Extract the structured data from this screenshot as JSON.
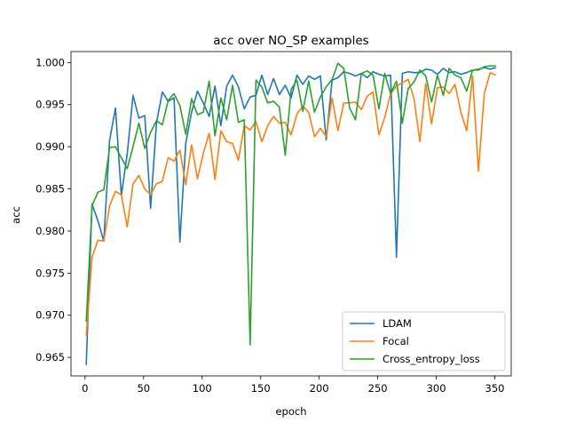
{
  "chart_data": {
    "type": "line",
    "title": "acc over NO_SP examples",
    "xlabel": "epoch",
    "ylabel": "acc",
    "xlim": [
      -12,
      364
    ],
    "ylim": [
      0.9628,
      1.0013
    ],
    "xticks": [
      0,
      50,
      100,
      150,
      200,
      250,
      300,
      350
    ],
    "yticks": [
      0.965,
      0.97,
      0.975,
      0.98,
      0.985,
      0.99,
      0.995,
      1.0
    ],
    "ytick_labels": [
      "0.965",
      "0.970",
      "0.975",
      "0.980",
      "0.985",
      "0.990",
      "0.995",
      "1.000"
    ],
    "grid": false,
    "legend_position": "lower-right",
    "x": [
      1,
      6,
      11,
      16,
      21,
      26,
      31,
      36,
      41,
      46,
      51,
      56,
      61,
      66,
      71,
      76,
      81,
      86,
      91,
      96,
      101,
      106,
      111,
      116,
      121,
      126,
      131,
      136,
      141,
      146,
      151,
      156,
      161,
      166,
      171,
      176,
      181,
      186,
      191,
      196,
      201,
      206,
      211,
      216,
      221,
      226,
      231,
      236,
      241,
      246,
      251,
      256,
      261,
      266,
      271,
      276,
      281,
      286,
      291,
      296,
      301,
      306,
      311,
      316,
      321,
      326,
      331,
      336,
      341,
      346,
      351
    ],
    "series": [
      {
        "name": "LDAM",
        "color": "#1f77b4",
        "values": [
          0.9641,
          0.9832,
          0.9812,
          0.9788,
          0.9908,
          0.9946,
          0.9842,
          0.9891,
          0.9961,
          0.9934,
          0.9937,
          0.9827,
          0.9928,
          0.9965,
          0.9954,
          0.9958,
          0.9787,
          0.9904,
          0.9941,
          0.9966,
          0.9952,
          0.9936,
          0.9972,
          0.9925,
          0.9972,
          0.9985,
          0.9971,
          0.9945,
          0.9959,
          0.9961,
          0.9985,
          0.9962,
          0.9981,
          0.9962,
          0.9973,
          0.9958,
          0.9985,
          0.9974,
          0.9984,
          0.998,
          0.9984,
          0.9908,
          0.9979,
          0.9982,
          0.9989,
          0.9987,
          0.9984,
          0.9987,
          0.9982,
          0.9989,
          0.9986,
          0.9984,
          0.9985,
          0.9769,
          0.9987,
          0.9989,
          0.9988,
          0.9988,
          0.9992,
          0.9991,
          0.9986,
          0.9993,
          0.9988,
          0.9989,
          0.9986,
          0.9988,
          0.9991,
          0.9992,
          0.9994,
          0.9992,
          0.9994
        ]
      },
      {
        "name": "Focal",
        "color": "#ff7f0e",
        "values": [
          0.9675,
          0.9769,
          0.9789,
          0.9788,
          0.983,
          0.9847,
          0.9843,
          0.9805,
          0.9856,
          0.9866,
          0.985,
          0.9843,
          0.9856,
          0.9859,
          0.9887,
          0.9883,
          0.9896,
          0.9855,
          0.9902,
          0.9862,
          0.9892,
          0.9916,
          0.9861,
          0.9919,
          0.9906,
          0.9904,
          0.9884,
          0.9925,
          0.992,
          0.993,
          0.9906,
          0.9925,
          0.9936,
          0.9928,
          0.9929,
          0.9914,
          0.9939,
          0.9948,
          0.9941,
          0.9912,
          0.9922,
          0.9912,
          0.9958,
          0.9919,
          0.9952,
          0.9952,
          0.9953,
          0.9944,
          0.996,
          0.9965,
          0.9914,
          0.9935,
          0.9963,
          0.9972,
          0.9976,
          0.998,
          0.9957,
          0.9906,
          0.9975,
          0.9927,
          0.997,
          0.9971,
          0.9963,
          0.9974,
          0.9941,
          0.9919,
          0.9984,
          0.9871,
          0.9963,
          0.9988,
          0.9985
        ]
      },
      {
        "name": "Cross_entropy_loss",
        "color": "#2ca02c",
        "values": [
          0.9692,
          0.983,
          0.9846,
          0.9849,
          0.9899,
          0.99,
          0.9887,
          0.9874,
          0.99,
          0.9928,
          0.9898,
          0.9917,
          0.9931,
          0.9926,
          0.9955,
          0.9963,
          0.9949,
          0.9915,
          0.9957,
          0.9938,
          0.9941,
          0.9978,
          0.9913,
          0.9958,
          0.9932,
          0.9973,
          0.9929,
          0.9932,
          0.9665,
          0.9979,
          0.9971,
          0.9952,
          0.9954,
          0.9947,
          0.989,
          0.9968,
          0.9979,
          0.9942,
          0.9978,
          0.9941,
          0.9959,
          0.9971,
          0.998,
          0.9999,
          0.9993,
          0.9946,
          0.9932,
          0.9987,
          0.999,
          0.9985,
          0.9945,
          0.9987,
          0.9963,
          0.9978,
          0.9928,
          0.9969,
          0.9977,
          0.9991,
          0.9984,
          0.9953,
          0.9985,
          0.9961,
          0.9993,
          0.9985,
          0.9982,
          0.9966,
          0.9991,
          0.9991,
          0.9995,
          0.9996,
          0.9996
        ]
      }
    ]
  }
}
